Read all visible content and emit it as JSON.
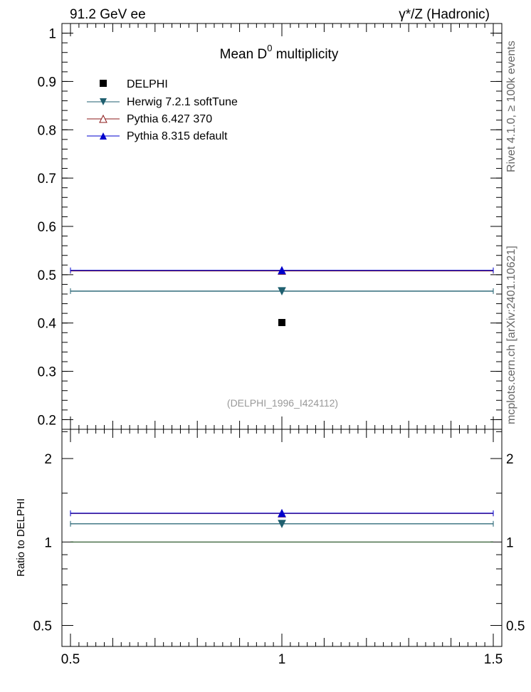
{
  "header": {
    "left": "91.2 GeV ee",
    "right": "γ*/Z (Hadronic)"
  },
  "side_labels": {
    "rivet": "Rivet 4.1.0, ≥ 100k events",
    "mcplots": "mcplots.cern.ch [arXiv:2401.10621]"
  },
  "chart_data": {
    "type": "scatter",
    "title_main": "Mean D",
    "title_sup": "0",
    "title_rest": " multiplicity",
    "analysis_id": "(DELPHI_1996_I424112)",
    "xlim": [
      0.5,
      1.5
    ],
    "x_ticks": [
      "0.5",
      "1",
      "1.5"
    ],
    "main_panel": {
      "ylim": [
        0.18,
        1.02
      ],
      "y_ticks": [
        "0.2",
        "0.3",
        "0.4",
        "0.5",
        "0.6",
        "0.7",
        "0.8",
        "0.9",
        "1"
      ],
      "data": {
        "name": "DELPHI",
        "x": 1,
        "y": 0.401,
        "color": "#000000"
      },
      "series": [
        {
          "name": "Herwig 7.2.1 softTune",
          "x": 1,
          "y": 0.466,
          "xerr": [
            0.5,
            1.5
          ],
          "color": "#1f5f6f",
          "marker": "triangle-down"
        },
        {
          "name": "Pythia 6.427 370",
          "x": 1,
          "y": 0.508,
          "xerr": [
            0.5,
            1.5
          ],
          "color": "#8b1a1a",
          "marker": "triangle-up-open"
        },
        {
          "name": "Pythia 8.315 default",
          "x": 1,
          "y": 0.509,
          "xerr": [
            0.5,
            1.5
          ],
          "color": "#0000cc",
          "marker": "triangle-up"
        }
      ]
    },
    "ratio_panel": {
      "ylabel": "Ratio to DELPHI",
      "ylim": [
        0.42,
        2.55
      ],
      "scale": "log",
      "y_ticks": [
        "0.5",
        "1",
        "2"
      ],
      "reference": 1.0,
      "values": [
        {
          "name": "Herwig 7.2.1 softTune",
          "y": 1.163
        },
        {
          "name": "Pythia 6.427 370",
          "y": 1.267
        },
        {
          "name": "Pythia 8.315 default",
          "y": 1.27
        }
      ]
    }
  }
}
